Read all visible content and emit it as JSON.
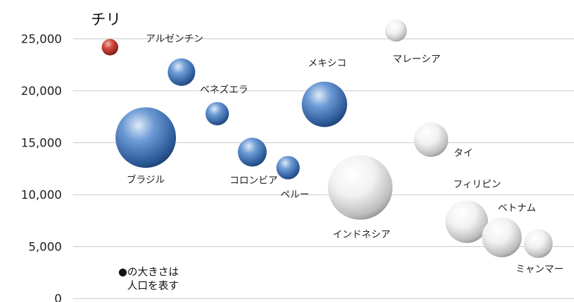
{
  "chart_data": {
    "type": "scatter",
    "title": "チリ",
    "ylabel": "",
    "xlabel": "",
    "ylim": [
      0,
      26000
    ],
    "y_ticks": [
      "0",
      "5,000",
      "10,000",
      "15,000",
      "20,000",
      "25,000"
    ],
    "y_tick_values": [
      0,
      5000,
      10000,
      15000,
      20000,
      25000
    ],
    "grid": true,
    "note_lines": [
      "●の大きさは",
      "人口を表す"
    ],
    "colors": {
      "highlight": "#c0392b",
      "blue": "#3b6eb0",
      "white": "#d6d6d6"
    },
    "points": [
      {
        "name": "チリ",
        "y": 24200,
        "size": 12,
        "color": "red",
        "show_label": false
      },
      {
        "name": "アルゼンチン",
        "y": 21800,
        "size": 20,
        "color": "blue",
        "show_label": true
      },
      {
        "name": "ベネズエラ",
        "y": 17800,
        "size": 17,
        "color": "blue",
        "show_label": true
      },
      {
        "name": "ブラジル",
        "y": 15500,
        "size": 44,
        "color": "blue",
        "show_label": true
      },
      {
        "name": "コロンビア",
        "y": 14100,
        "size": 21,
        "color": "blue",
        "show_label": true
      },
      {
        "name": "ペルー",
        "y": 12600,
        "size": 17,
        "color": "blue",
        "show_label": true
      },
      {
        "name": "メキシコ",
        "y": 18700,
        "size": 33,
        "color": "blue",
        "show_label": true
      },
      {
        "name": "マレーシア",
        "y": 25800,
        "size": 16,
        "color": "white",
        "show_label": true
      },
      {
        "name": "タイ",
        "y": 15300,
        "size": 25,
        "color": "white",
        "show_label": true
      },
      {
        "name": "インドネシア",
        "y": 10700,
        "size": 47,
        "color": "white",
        "show_label": true
      },
      {
        "name": "フィリピン",
        "y": 7400,
        "size": 31,
        "color": "white",
        "show_label": true
      },
      {
        "name": "ベトナム",
        "y": 5900,
        "size": 29,
        "color": "white",
        "show_label": true
      },
      {
        "name": "ミャンマー",
        "y": 5300,
        "size": 21,
        "color": "white",
        "show_label": true
      }
    ]
  }
}
